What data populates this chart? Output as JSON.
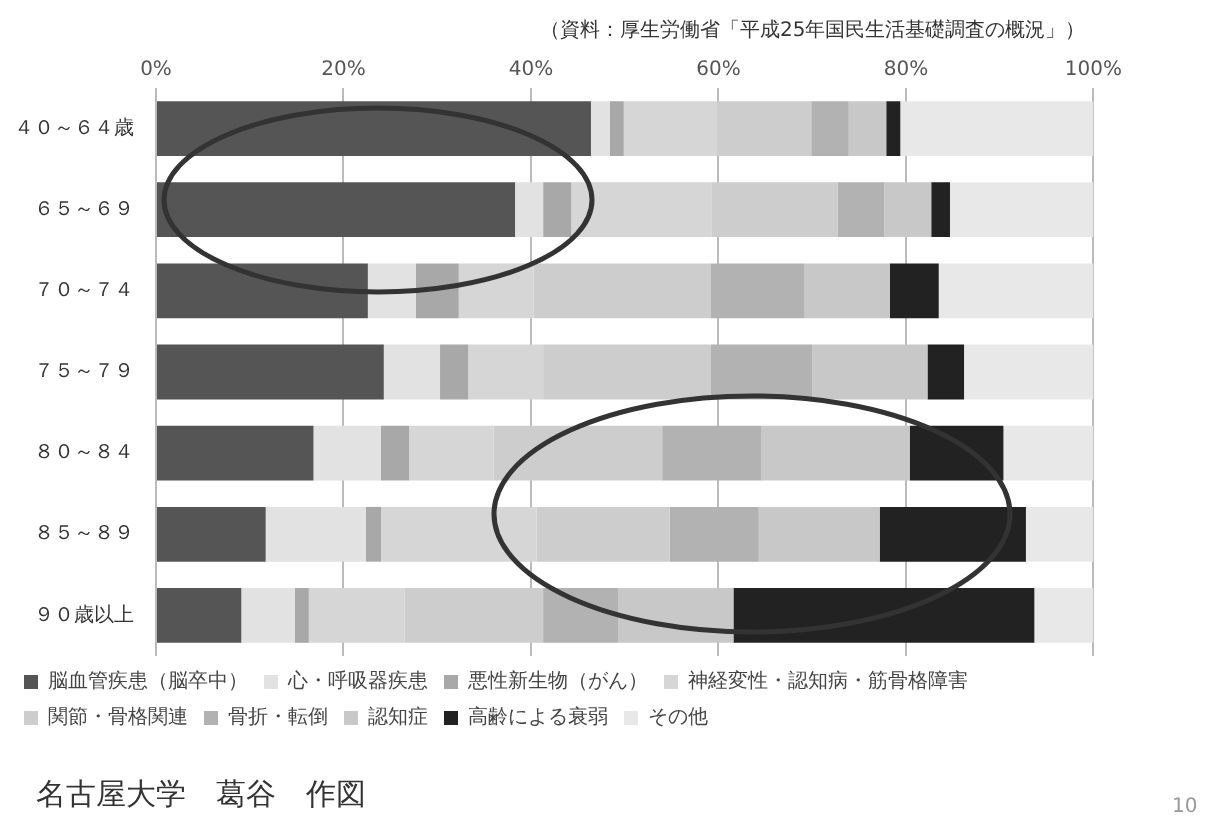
{
  "chart_data": {
    "type": "bar",
    "orientation": "horizontal",
    "stacked": true,
    "categories": [
      "４０～６４歳",
      "６５～６９",
      "７０～７４",
      "７５～７９",
      "８０～８４",
      "８５～８９",
      "９０歳以上"
    ],
    "series": [
      {
        "name": "脳血管疾患（脳卒中）",
        "color": "#555555",
        "values": [
          46.4,
          38.3,
          22.6,
          24.3,
          16.8,
          11.7,
          9.1
        ]
      },
      {
        "name": "心・呼吸器疾患",
        "color": "#e2e2e2",
        "values": [
          2.0,
          3.0,
          5.1,
          6.0,
          7.2,
          10.7,
          5.7
        ]
      },
      {
        "name": "悪性新生物（がん）",
        "color": "#a8a8a8",
        "values": [
          1.5,
          3.0,
          4.6,
          3.0,
          3.0,
          1.6,
          1.5
        ]
      },
      {
        "name": "神経変性・認知病・筋骨格障害",
        "color": "#d6d6d6",
        "values": [
          10.0,
          15.0,
          8.0,
          8.0,
          9.0,
          16.6,
          10.2
        ]
      },
      {
        "name": "関節・骨格関連",
        "color": "#cdcdcd",
        "values": [
          10.0,
          13.4,
          18.9,
          17.9,
          18.0,
          14.2,
          14.8
        ]
      },
      {
        "name": "骨折・転倒",
        "color": "#b2b2b2",
        "values": [
          4.0,
          5.0,
          10.0,
          10.8,
          10.6,
          9.5,
          8.0
        ]
      },
      {
        "name": "認知症",
        "color": "#c8c8c8",
        "values": [
          4.0,
          5.0,
          9.1,
          12.3,
          15.8,
          12.9,
          12.3
        ]
      },
      {
        "name": "高齢による衰弱",
        "color": "#222222",
        "values": [
          1.5,
          2.0,
          5.2,
          3.9,
          10.0,
          15.6,
          32.1
        ]
      },
      {
        "name": "その他",
        "color": "#e8e8e8",
        "values": [
          20.6,
          15.3,
          16.5,
          13.8,
          9.6,
          7.2,
          6.3
        ]
      }
    ],
    "xlim": [
      0,
      100
    ],
    "xticks": [
      {
        "value": 0,
        "label": "0%"
      },
      {
        "value": 20,
        "label": "20%"
      },
      {
        "value": 40,
        "label": "40%"
      },
      {
        "value": 60,
        "label": "60%"
      },
      {
        "value": 80,
        "label": "80%"
      },
      {
        "value": 100,
        "label": "100%"
      }
    ],
    "grid": "x",
    "legend": "bottom",
    "annotations": [
      "（資料：厚生労働省「平成25年国民生活基礎調査の概況」）",
      "名古屋大学　葛谷　作図",
      "10"
    ]
  }
}
